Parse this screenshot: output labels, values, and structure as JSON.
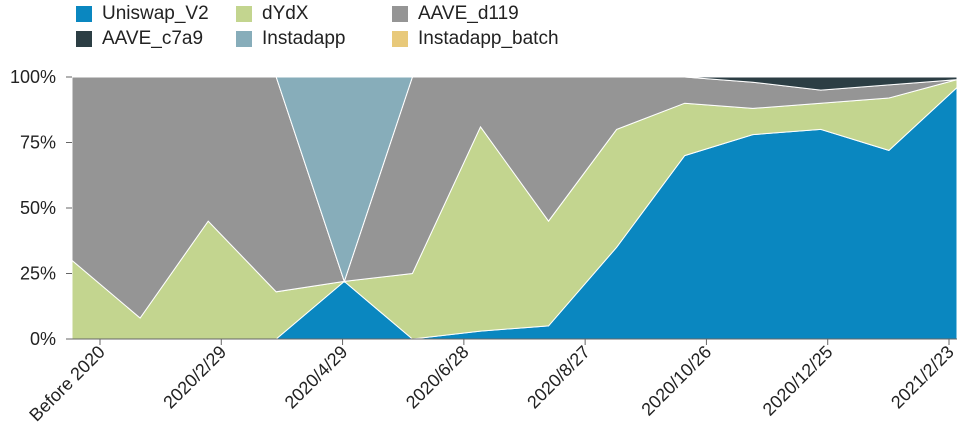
{
  "chart_data": {
    "type": "area",
    "stacked": true,
    "normalized": true,
    "title": "",
    "xlabel": "",
    "ylabel": "",
    "ylim": [
      0,
      100
    ],
    "y_ticks": [
      "0%",
      "25%",
      "50%",
      "75%",
      "100%"
    ],
    "x_ticks": [
      "Before 2020",
      "2020/2/29",
      "2020/4/29",
      "2020/6/28",
      "2020/8/27",
      "2020/10/26",
      "2020/12/25",
      "2021/2/23"
    ],
    "legend_position": "top-left",
    "grid": false,
    "x": [
      "Before 2020",
      "2020/2/29",
      "2020/3/15",
      "2020/4/29",
      "2020/5/10",
      "2020/6/28",
      "2020/7/20",
      "2020/8/27",
      "2020/9/25",
      "2020/10/26",
      "2020/11/25",
      "2020/12/25",
      "2021/1/25",
      "2021/2/23"
    ],
    "series": [
      {
        "name": "Uniswap_V2",
        "color": "#0a87c0",
        "values": [
          0,
          0,
          0,
          0,
          22,
          0,
          3,
          5,
          35,
          70,
          78,
          80,
          72,
          96
        ]
      },
      {
        "name": "dYdX",
        "color": "#c3d58f",
        "values": [
          30,
          8,
          45,
          18,
          0,
          25,
          78,
          40,
          45,
          20,
          10,
          10,
          20,
          3
        ]
      },
      {
        "name": "AAVE_d119",
        "color": "#959595",
        "values": [
          70,
          92,
          55,
          82,
          0,
          75,
          19,
          55,
          20,
          10,
          10,
          5,
          5,
          0
        ]
      },
      {
        "name": "AAVE_c7a9",
        "color": "#2c3e44",
        "values": [
          0,
          0,
          0,
          0,
          0,
          0,
          0,
          0,
          0,
          0,
          2,
          5,
          3,
          1
        ]
      },
      {
        "name": "Instadapp",
        "color": "#87adba",
        "values": [
          0,
          0,
          0,
          0,
          78,
          0,
          0,
          0,
          0,
          0,
          0,
          0,
          0,
          0
        ]
      },
      {
        "name": "Instadapp_batch",
        "color": "#e8c97a",
        "values": [
          0,
          0,
          0,
          0,
          0,
          0,
          0,
          0,
          0,
          0,
          0,
          0,
          0,
          0
        ]
      }
    ]
  }
}
